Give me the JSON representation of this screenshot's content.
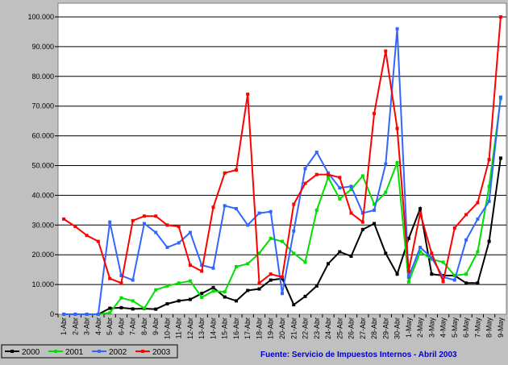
{
  "chart_data": {
    "type": "line",
    "title": "",
    "xlabel": "",
    "ylabel": "",
    "ylim": [
      0,
      100000
    ],
    "yticks": [
      "0",
      "10.000",
      "20.000",
      "30.000",
      "40.000",
      "50.000",
      "60.000",
      "70.000",
      "80.000",
      "90.000",
      "100.000"
    ],
    "grid": true,
    "legend_position": "bottom-left",
    "source_note": "Fuente:  Servicio de Impuestos Internos - Abril 2003",
    "categories": [
      "1-Abr",
      "2-Abr",
      "3-Abr",
      "4-Abr",
      "5-Abr",
      "6-Abr",
      "7-Abr",
      "8-Abr",
      "9-Abr",
      "10-Abr",
      "11-Abr",
      "12-Abr",
      "13-Abr",
      "14-Abr",
      "15-Abr",
      "16-Abr",
      "17-Abr",
      "18-Abr",
      "19-Abr",
      "20-Abr",
      "21-Abr",
      "22-Abr",
      "23-Abr",
      "24-Abr",
      "25-Abr",
      "26-Abr",
      "27-Abr",
      "28-Abr",
      "29-Abr",
      "30-Abr",
      "1-May",
      "2-May",
      "3-May",
      "4-May",
      "5-May",
      "6-May",
      "7-May",
      "8-May",
      "9-May"
    ],
    "series": [
      {
        "name": "2000",
        "color": "#000000",
        "values": [
          0,
          0,
          0,
          0,
          2000,
          2200,
          1800,
          1900,
          1700,
          3500,
          4500,
          5000,
          7000,
          9000,
          5800,
          4500,
          8000,
          8500,
          11500,
          12000,
          3200,
          6000,
          9500,
          17000,
          21000,
          19500,
          28500,
          30500,
          20500,
          13500,
          25500,
          35500,
          13500,
          13000,
          13000,
          10500,
          10500,
          24500,
          52500
        ]
      },
      {
        "name": "2001",
        "color": "#00e000",
        "values": [
          0,
          0,
          0,
          0,
          500,
          5500,
          4500,
          2000,
          8200,
          9500,
          10500,
          11200,
          5700,
          7800,
          7500,
          16000,
          17000,
          20500,
          25500,
          24500,
          20500,
          17500,
          35000,
          46000,
          38800,
          42000,
          46500,
          37000,
          41000,
          51000,
          10800,
          21000,
          18500,
          17500,
          13000,
          13500,
          21000,
          43000,
          72500
        ]
      },
      {
        "name": "2002",
        "color": "#3366ff",
        "values": [
          0,
          0,
          0,
          0,
          31000,
          13000,
          11500,
          30500,
          27500,
          22500,
          24000,
          27500,
          16500,
          15500,
          36500,
          35500,
          30000,
          34000,
          34500,
          7000,
          28000,
          49000,
          54500,
          47500,
          42500,
          43000,
          34000,
          35000,
          50500,
          96000,
          12500,
          22500,
          19000,
          12500,
          11500,
          25000,
          32000,
          38000,
          73000
        ]
      },
      {
        "name": "2003",
        "color": "#ff0000",
        "values": [
          32000,
          29500,
          26500,
          24500,
          12000,
          10500,
          31500,
          33000,
          33000,
          30000,
          29500,
          16500,
          14500,
          36000,
          47500,
          48500,
          74000,
          10500,
          13500,
          12500,
          37000,
          44000,
          47000,
          47000,
          46000,
          34000,
          31000,
          67500,
          88500,
          62500,
          14500,
          34000,
          20500,
          11000,
          29000,
          33500,
          37500,
          52000,
          100000
        ]
      }
    ]
  }
}
